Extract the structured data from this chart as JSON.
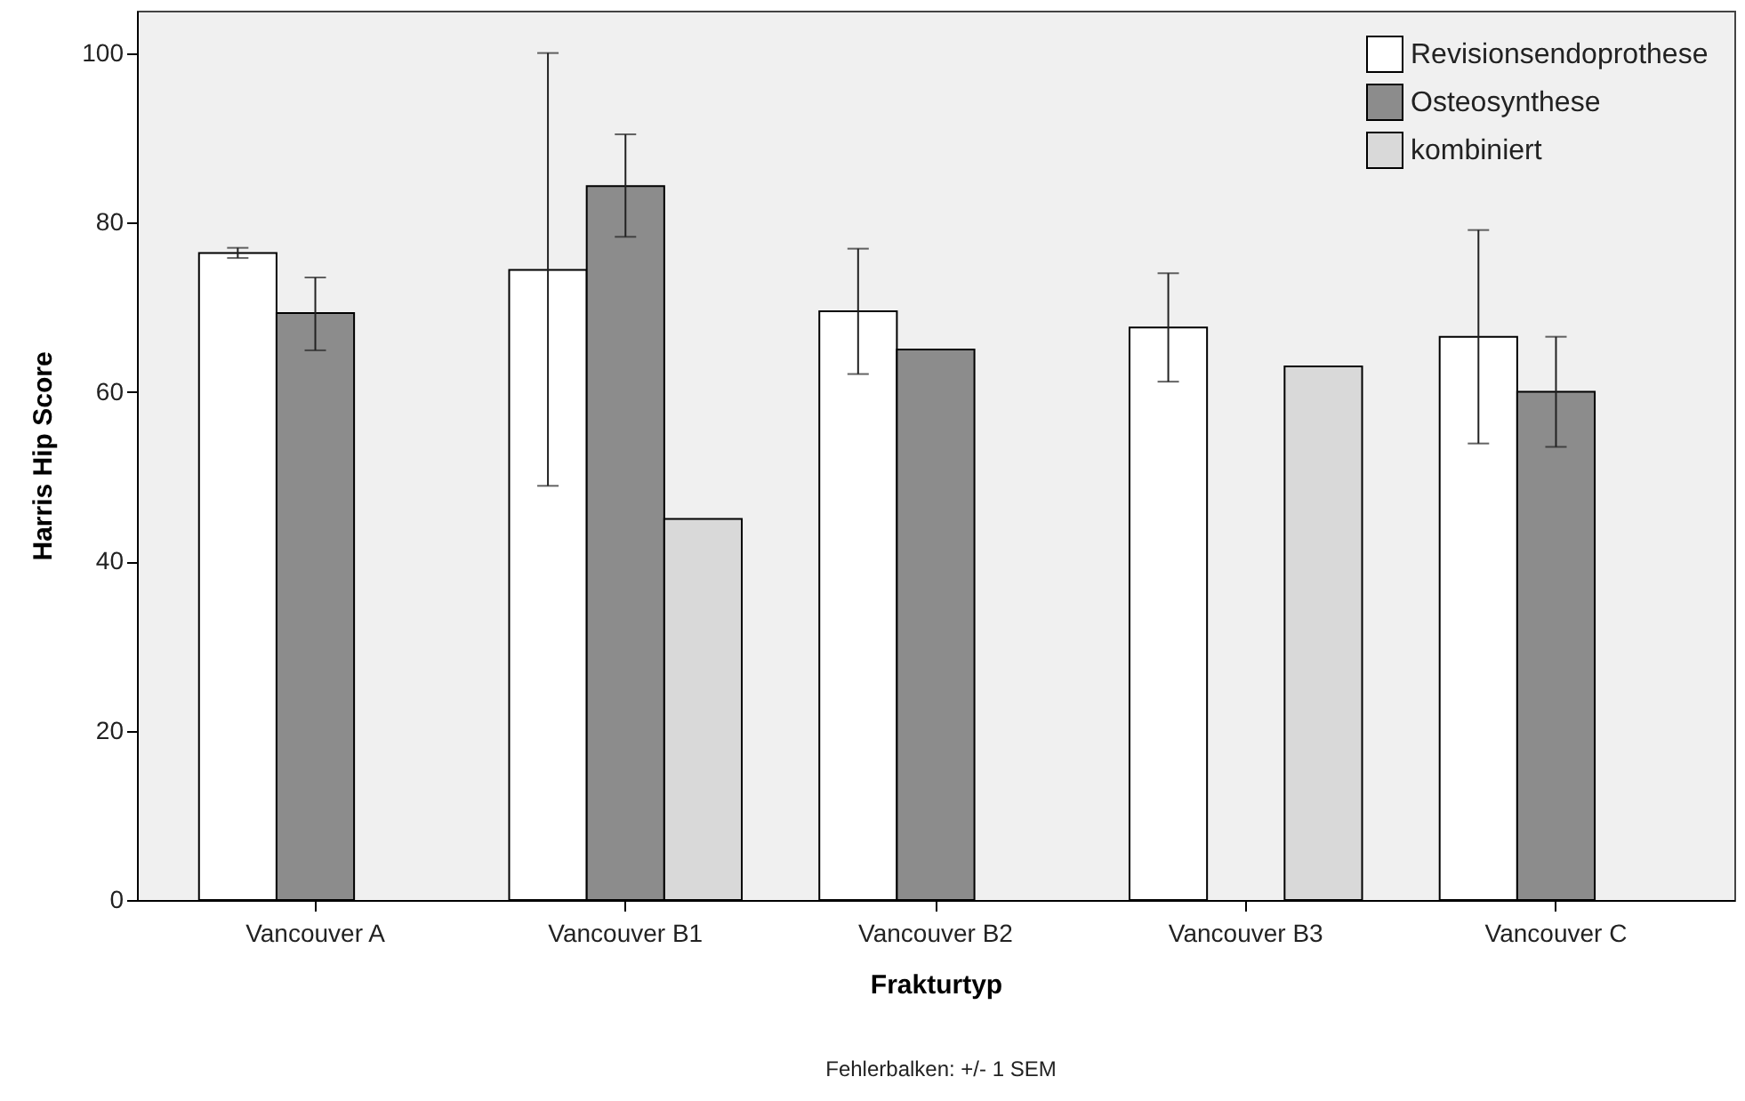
{
  "chart_data": {
    "type": "bar",
    "xlabel": "Frakturtyp",
    "ylabel": "Harris Hip Score",
    "annotations": [
      "Fehlerbalken: +/- 1 SEM"
    ],
    "categories": [
      "Vancouver A",
      "Vancouver B1",
      "Vancouver B2",
      "Vancouver B3",
      "Vancouver C"
    ],
    "series": [
      {
        "name": "Revisionsendoprothese",
        "color": "#ffffff",
        "values": [
          76.4,
          74.4,
          69.5,
          67.6,
          66.5
        ],
        "errors": [
          0.6,
          [
            48.9,
            100
          ],
          [
            62.1,
            76.9
          ],
          [
            61.2,
            74.0
          ],
          [
            53.9,
            79.1
          ]
        ]
      },
      {
        "name": "Osteosynthese",
        "color": "#8c8c8c",
        "values": [
          69.3,
          84.3,
          65,
          null,
          60
        ],
        "errors": [
          [
            64.9,
            73.5
          ],
          [
            78.3,
            90.4
          ],
          null,
          null,
          [
            53.5,
            66.5
          ]
        ]
      },
      {
        "name": "kombiniert",
        "color": "#d9d9d9",
        "values": [
          null,
          45,
          null,
          63,
          null
        ],
        "errors": [
          null,
          null,
          null,
          null,
          null
        ]
      }
    ],
    "ylim": [
      0,
      105
    ],
    "yticks": [
      0,
      20,
      40,
      60,
      80,
      100
    ],
    "grid": false,
    "legend": "top right"
  }
}
